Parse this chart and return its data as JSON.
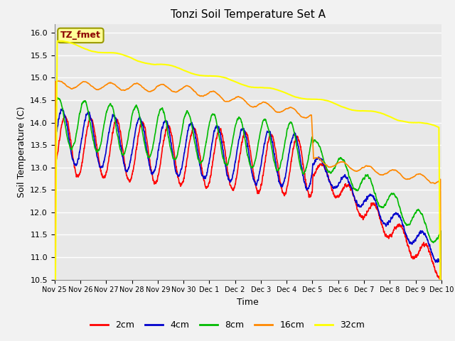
{
  "title": "Tonzi Soil Temperature Set A",
  "xlabel": "Time",
  "ylabel": "Soil Temperature (C)",
  "ylim": [
    10.5,
    16.2
  ],
  "annotation_text": "TZ_fmet",
  "annotation_color": "#8B0000",
  "annotation_bg": "#FFFF99",
  "annotation_border": "#999900",
  "series": {
    "2cm": {
      "color": "#FF0000",
      "linewidth": 1.2
    },
    "4cm": {
      "color": "#0000CC",
      "linewidth": 1.2
    },
    "8cm": {
      "color": "#00BB00",
      "linewidth": 1.2
    },
    "16cm": {
      "color": "#FF8800",
      "linewidth": 1.2
    },
    "32cm": {
      "color": "#FFFF00",
      "linewidth": 1.5
    }
  },
  "background_color": "#E8E8E8",
  "plot_bg": "#E8E8E8",
  "fig_bg": "#F2F2F2",
  "grid_color": "#FFFFFF",
  "tick_labels": [
    "Nov 25",
    "Nov 26",
    "Nov 27",
    "Nov 28",
    "Nov 29",
    "Nov 30",
    "Dec 1",
    "Dec 2",
    "Dec 3",
    "Dec 4",
    "Dec 5",
    "Dec 6",
    "Dec 7",
    "Dec 8",
    "Dec 9",
    "Dec 10"
  ],
  "legend_ncol": 5,
  "figsize": [
    6.4,
    4.8
  ],
  "dpi": 100
}
